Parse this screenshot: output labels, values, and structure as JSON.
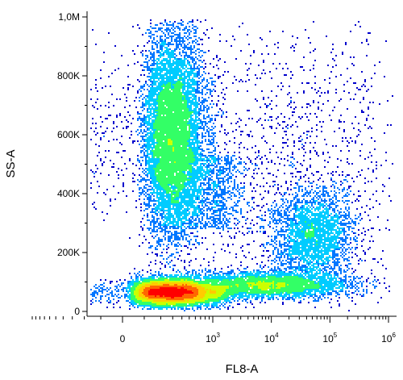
{
  "chart_data": {
    "type": "scatter",
    "title": "",
    "xlabel": "FL8-A",
    "ylabel": "SS-A",
    "x_scale": "biexponential",
    "x_range": [
      -1000,
      1000000
    ],
    "y_scale": "linear",
    "ylim": [
      0,
      1000000
    ],
    "grid": false,
    "legend": "none",
    "density_colormap": [
      "#0000cc",
      "#0077ff",
      "#00ccff",
      "#33ff66",
      "#ccff00",
      "#ffcc00",
      "#ff6600",
      "#ff0000"
    ],
    "x_ticks": [
      {
        "value": 0,
        "label": "0",
        "base": "",
        "exp": ""
      },
      {
        "value": 1000,
        "label": "",
        "base": "10",
        "exp": "3"
      },
      {
        "value": 10000,
        "label": "",
        "base": "10",
        "exp": "4"
      },
      {
        "value": 100000,
        "label": "",
        "base": "10",
        "exp": "5"
      },
      {
        "value": 1000000,
        "label": "",
        "base": "10",
        "exp": "6"
      }
    ],
    "y_ticks": [
      {
        "value": 0,
        "label": "0"
      },
      {
        "value": 200000,
        "label": "200K"
      },
      {
        "value": 400000,
        "label": "400K"
      },
      {
        "value": 600000,
        "label": "600K"
      },
      {
        "value": 800000,
        "label": "800K"
      },
      {
        "value": 1000000,
        "label": "1,0M"
      }
    ],
    "populations": [
      {
        "x_center": 300,
        "y_center": 600000,
        "x_spread_decades": 0.22,
        "y_spread": 170000,
        "relative_count": 0.38
      },
      {
        "x_center": 300,
        "y_center": 65000,
        "x_spread_decades": 0.35,
        "y_spread": 22000,
        "relative_count": 0.34
      },
      {
        "x_center": 8000,
        "y_center": 60000,
        "x_spread_decades": 0.7,
        "y_spread": 20000,
        "relative_count": 0.14
      },
      {
        "x_center": 50000,
        "y_center": 260000,
        "x_spread_decades": 0.35,
        "y_spread": 75000,
        "relative_count": 0.1
      },
      {
        "x_center": 20000,
        "y_center": 500000,
        "x_spread_decades": 1.2,
        "y_spread": 250000,
        "relative_count": 0.04
      }
    ]
  }
}
